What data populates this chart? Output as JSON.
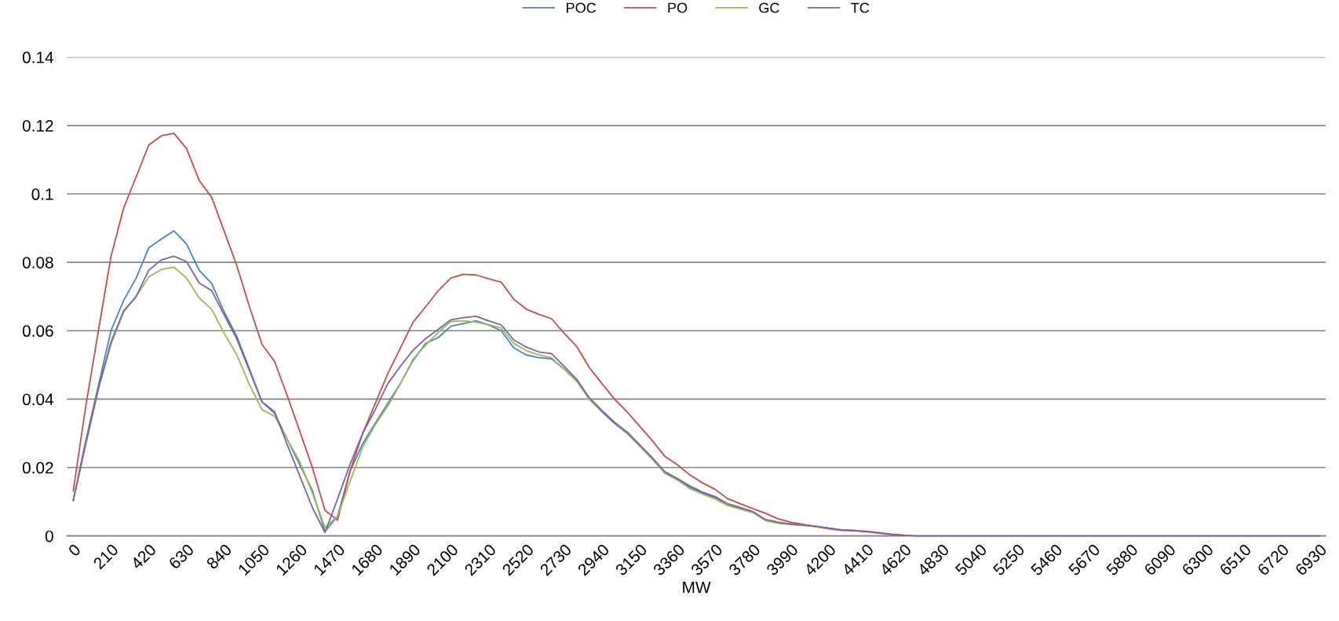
{
  "chart_data": {
    "type": "line",
    "xlabel": "MW",
    "categories": [
      "0",
      null,
      null,
      "210",
      null,
      null,
      "420",
      null,
      null,
      "630",
      null,
      null,
      "840",
      null,
      null,
      "1050",
      null,
      null,
      "1260",
      null,
      null,
      "1470",
      null,
      null,
      "1680",
      null,
      null,
      "1890",
      null,
      null,
      "2100",
      null,
      null,
      "2310",
      null,
      null,
      "2520",
      null,
      null,
      "2730",
      null,
      null,
      "2940",
      null,
      null,
      "3150",
      null,
      null,
      "3360",
      null,
      null,
      "3570",
      null,
      null,
      "3780",
      null,
      null,
      "3990",
      null,
      null,
      "4200",
      null,
      null,
      "4410",
      null,
      null,
      "4620",
      null,
      null,
      "4830",
      null,
      null,
      "5040",
      null,
      null,
      "5250",
      null,
      null,
      "5460",
      null,
      null,
      "5670",
      null,
      null,
      "5880",
      null,
      null,
      "6090",
      null,
      null,
      "6300",
      null,
      null,
      "6510",
      null,
      null,
      "6720",
      null,
      null,
      "6930"
    ],
    "series": [
      {
        "name": "POC",
        "color": "#4f81bd",
        "values": [
          0.0104,
          0.028,
          0.044,
          0.06,
          0.0688,
          0.0754,
          0.0842,
          0.0868,
          0.0892,
          0.0854,
          0.0777,
          0.0738,
          0.0654,
          0.0583,
          0.0488,
          0.0392,
          0.0358,
          0.0283,
          0.0208,
          0.0133,
          0.0013,
          0.0058,
          0.019,
          0.027,
          0.033,
          0.0388,
          0.0446,
          0.0513,
          0.0563,
          0.058,
          0.0613,
          0.0621,
          0.0629,
          0.0617,
          0.06,
          0.055,
          0.0529,
          0.0521,
          0.0518,
          0.0488,
          0.0454,
          0.04,
          0.0363,
          0.0329,
          0.03,
          0.0263,
          0.0225,
          0.0185,
          0.0167,
          0.0142,
          0.0125,
          0.0112,
          0.009,
          0.008,
          0.007,
          0.0046,
          0.0038,
          0.0035,
          0.0032,
          0.0028,
          0.0023,
          0.0018,
          0.0016,
          null,
          null,
          null,
          null,
          null,
          null,
          null,
          null,
          null,
          null,
          null,
          null,
          null,
          null,
          null,
          null,
          null,
          null,
          null,
          null,
          null,
          null,
          null,
          null,
          null,
          null,
          null,
          null,
          null,
          null,
          null,
          null,
          null,
          null,
          null,
          null,
          null
        ]
      },
      {
        "name": "PO",
        "color": "#c0504d",
        "values": [
          0.0132,
          0.038,
          0.06,
          0.0817,
          0.0958,
          0.105,
          0.1143,
          0.117,
          0.1177,
          0.1133,
          0.104,
          0.099,
          0.089,
          0.079,
          0.067,
          0.056,
          0.051,
          0.041,
          0.0306,
          0.02,
          0.0075,
          0.0046,
          0.019,
          0.03,
          0.0388,
          0.0475,
          0.055,
          0.0625,
          0.067,
          0.0717,
          0.0754,
          0.0765,
          0.0763,
          0.0752,
          0.0742,
          0.0692,
          0.0663,
          0.0648,
          0.0635,
          0.0593,
          0.0554,
          0.0492,
          0.0446,
          0.04,
          0.0363,
          0.0321,
          0.0279,
          0.0233,
          0.0208,
          0.0178,
          0.0155,
          0.0136,
          0.0109,
          0.0094,
          0.008,
          0.0066,
          0.005,
          0.004,
          0.0034,
          0.0027,
          0.0021,
          0.0016,
          0.0015,
          0.0012,
          0.0008,
          0.0004,
          0.0002,
          null,
          null,
          null,
          null,
          null,
          null,
          null,
          null,
          null,
          null,
          null,
          null,
          null,
          null,
          null,
          null,
          null,
          null,
          null,
          null,
          null,
          null,
          null,
          null,
          null,
          null,
          null,
          null,
          null,
          null,
          null,
          null,
          null
        ]
      },
      {
        "name": "GC",
        "color": "#9bbb59",
        "values": [
          0.0104,
          0.027,
          0.043,
          0.056,
          0.0654,
          0.07,
          0.0757,
          0.0779,
          0.0786,
          0.0754,
          0.0696,
          0.0663,
          0.0592,
          0.0529,
          0.0442,
          0.0369,
          0.035,
          0.0283,
          0.0217,
          0.0125,
          0.0025,
          0.0058,
          0.016,
          0.026,
          0.0325,
          0.038,
          0.0446,
          0.0517,
          0.0558,
          0.0596,
          0.0627,
          0.0629,
          0.0625,
          0.0618,
          0.0608,
          0.0563,
          0.0542,
          0.0529,
          0.0521,
          0.0488,
          0.0452,
          0.04,
          0.0365,
          0.0332,
          0.03,
          0.0263,
          0.0225,
          0.0183,
          0.0163,
          0.0138,
          0.0122,
          0.0108,
          0.0089,
          0.0078,
          0.0068,
          0.0045,
          0.0037,
          0.0033,
          0.003,
          0.0027,
          0.0022,
          0.0018,
          null,
          null,
          null,
          null,
          null,
          null,
          null,
          null,
          null,
          null,
          null,
          null,
          null,
          null,
          null,
          null,
          null,
          null,
          null,
          null,
          null,
          null,
          null,
          null,
          null,
          null,
          null,
          null,
          null,
          null,
          null,
          null,
          null,
          null,
          null,
          null,
          null,
          null
        ]
      },
      {
        "name": "TC",
        "color": "#8064a2",
        "values": [
          0.0104,
          0.027,
          0.043,
          0.0567,
          0.0658,
          0.07,
          0.0777,
          0.0807,
          0.0818,
          0.0802,
          0.074,
          0.0717,
          0.0646,
          0.0575,
          0.0483,
          0.0392,
          0.0363,
          0.0267,
          0.0175,
          0.0083,
          0.001,
          0.0108,
          0.021,
          0.03,
          0.037,
          0.0446,
          0.0496,
          0.0543,
          0.0577,
          0.0604,
          0.0632,
          0.0638,
          0.0642,
          0.0629,
          0.0617,
          0.0573,
          0.0552,
          0.0538,
          0.0533,
          0.0496,
          0.0458,
          0.0404,
          0.0367,
          0.0332,
          0.0304,
          0.0267,
          0.0229,
          0.0188,
          0.0168,
          0.0146,
          0.0128,
          0.0115,
          0.0094,
          0.0083,
          0.0071,
          0.0048,
          0.004,
          0.0035,
          0.0032,
          0.0028,
          0.0023,
          0.0018,
          0.0016,
          0.0014,
          0.001,
          0.0005,
          0.0002,
          0,
          0,
          0,
          0,
          0,
          0,
          0,
          0,
          0,
          0,
          0,
          0,
          0,
          0,
          0,
          0,
          0,
          0,
          0,
          0,
          0,
          0,
          0,
          0,
          0,
          0,
          0,
          0,
          0,
          0,
          0,
          0,
          0
        ]
      }
    ],
    "ylim": [
      0,
      0.14
    ],
    "yticks": [
      0,
      0.02,
      0.04,
      0.06,
      0.08,
      0.1,
      0.12,
      0.14
    ],
    "grid": "y",
    "legend": "top",
    "marker": "none",
    "line_style": "solid"
  }
}
